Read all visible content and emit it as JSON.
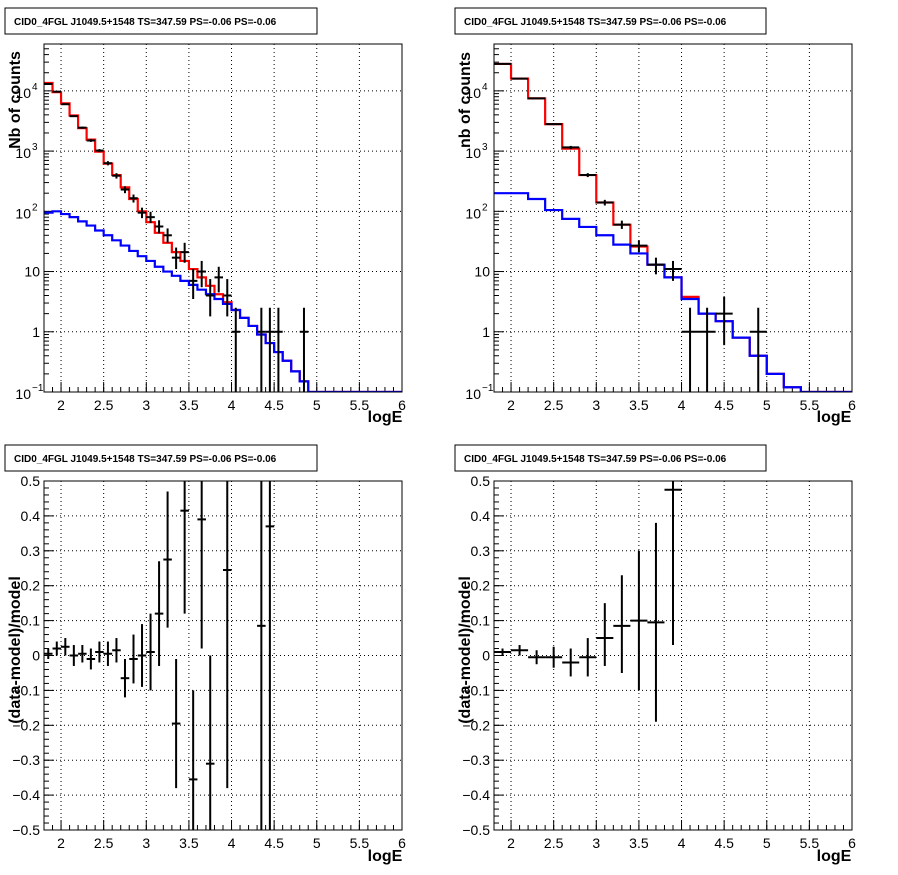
{
  "chart_data": [
    {
      "panel": "top-left",
      "type": "histogram",
      "title": "CID0_4FGL J1049.5+1548 TS=347.59 PS=-0.06 PS=-0.06",
      "xlabel": "logE",
      "ylabel": "Nb of counts",
      "xlim": [
        1.8,
        6.0
      ],
      "ylim": [
        0.1,
        60000
      ],
      "yscale": "log",
      "grid": true,
      "x_ticks": [
        "2",
        "2.5",
        "3",
        "3.5",
        "4",
        "4.5",
        "5",
        "5.5",
        "6"
      ],
      "y_ticks": [
        {
          "value": 0.1,
          "base": "10",
          "exp": "−1"
        },
        {
          "value": 1,
          "label": "1"
        },
        {
          "value": 10,
          "label": "10"
        },
        {
          "value": 100,
          "base": "10",
          "exp": "2"
        },
        {
          "value": 1000,
          "base": "10",
          "exp": "3"
        },
        {
          "value": 10000,
          "base": "10",
          "exp": "4"
        }
      ],
      "bin_edges": [
        1.8,
        1.9,
        2.0,
        2.1,
        2.2,
        2.3,
        2.4,
        2.5,
        2.6,
        2.7,
        2.8,
        2.9,
        3.0,
        3.1,
        3.2,
        3.3,
        3.4,
        3.5,
        3.6,
        3.7,
        3.8,
        3.9,
        4.0,
        4.1,
        4.2,
        4.3,
        4.4,
        4.5,
        4.6,
        4.7,
        4.8,
        4.9,
        5.0,
        5.1,
        5.2,
        5.3,
        5.4,
        5.5,
        5.6,
        5.7,
        5.8,
        5.9,
        6.0
      ],
      "series": [
        {
          "color": "#ff0000",
          "kind": "step",
          "values": [
            13500,
            9500,
            6200,
            3900,
            2400,
            1550,
            980,
            620,
            400,
            250,
            160,
            100,
            66,
            44,
            30,
            21,
            15,
            11,
            8,
            5.8,
            4.2,
            3.1,
            2.3,
            1.7,
            1.25,
            0.9,
            0.65,
            0.46,
            0.33,
            0.22,
            0.15,
            0.1,
            0.1,
            0.1,
            0.1,
            0.1,
            0.1,
            0.1,
            0.1,
            0.1,
            0.1,
            0.1
          ]
        },
        {
          "color": "#0000ff",
          "kind": "step",
          "values": [
            95,
            100,
            90,
            80,
            68,
            58,
            48,
            40,
            33,
            27,
            22,
            18,
            15,
            12,
            10,
            8.5,
            7,
            6,
            5,
            4.2,
            3.5,
            2.9,
            2.3,
            1.7,
            1.25,
            0.9,
            0.65,
            0.46,
            0.33,
            0.22,
            0.15,
            0.1,
            0.1,
            0.1,
            0.1,
            0.1,
            0.1,
            0.1,
            0.1,
            0.1,
            0.1,
            0.1
          ]
        }
      ],
      "points": [
        {
          "x": 1.85,
          "y": 13000,
          "lo": 12800,
          "hi": 13200
        },
        {
          "x": 1.95,
          "y": 9700,
          "lo": 9500,
          "hi": 9900
        },
        {
          "x": 2.05,
          "y": 6000,
          "lo": 5850,
          "hi": 6150
        },
        {
          "x": 2.15,
          "y": 3800,
          "lo": 3680,
          "hi": 3920
        },
        {
          "x": 2.25,
          "y": 2450,
          "lo": 2350,
          "hi": 2550
        },
        {
          "x": 2.35,
          "y": 1500,
          "lo": 1420,
          "hi": 1580
        },
        {
          "x": 2.45,
          "y": 1020,
          "lo": 960,
          "hi": 1080
        },
        {
          "x": 2.55,
          "y": 630,
          "lo": 580,
          "hi": 680
        },
        {
          "x": 2.65,
          "y": 390,
          "lo": 350,
          "hi": 430
        },
        {
          "x": 2.75,
          "y": 230,
          "lo": 200,
          "hi": 260
        },
        {
          "x": 2.85,
          "y": 165,
          "lo": 140,
          "hi": 190
        },
        {
          "x": 2.95,
          "y": 95,
          "lo": 77,
          "hi": 115
        },
        {
          "x": 3.05,
          "y": 80,
          "lo": 64,
          "hi": 98
        },
        {
          "x": 3.15,
          "y": 56,
          "lo": 43,
          "hi": 71
        },
        {
          "x": 3.25,
          "y": 40,
          "lo": 30,
          "hi": 52
        },
        {
          "x": 3.35,
          "y": 17,
          "lo": 11,
          "hi": 25
        },
        {
          "x": 3.45,
          "y": 21,
          "lo": 14,
          "hi": 30
        },
        {
          "x": 3.55,
          "y": 7,
          "lo": 3.5,
          "hi": 11
        },
        {
          "x": 3.65,
          "y": 10,
          "lo": 5.5,
          "hi": 15
        },
        {
          "x": 3.75,
          "y": 4,
          "lo": 1.8,
          "hi": 7.5
        },
        {
          "x": 3.85,
          "y": 8,
          "lo": 4.5,
          "hi": 12
        },
        {
          "x": 3.95,
          "y": 4,
          "lo": 1.8,
          "hi": 7.5
        },
        {
          "x": 4.05,
          "y": 1,
          "lo": 0.1,
          "hi": 2.5
        },
        {
          "x": 4.35,
          "y": 1,
          "lo": 0.1,
          "hi": 2.5
        },
        {
          "x": 4.45,
          "y": 1,
          "lo": 0.1,
          "hi": 2.5
        },
        {
          "x": 4.55,
          "y": 1,
          "lo": 0.1,
          "hi": 2.5
        },
        {
          "x": 4.85,
          "y": 1,
          "lo": 0.1,
          "hi": 2.5
        }
      ]
    },
    {
      "panel": "top-right",
      "type": "histogram",
      "title": "CID0_4FGL J1049.5+1548 TS=347.59 PS=-0.06 PS=-0.06",
      "xlabel": "logE",
      "ylabel": "nb of counts",
      "xlim": [
        1.8,
        6.0
      ],
      "ylim": [
        0.1,
        60000
      ],
      "yscale": "log",
      "grid": true,
      "x_ticks": [
        "2",
        "2.5",
        "3",
        "3.5",
        "4",
        "4.5",
        "5",
        "5.5",
        "6"
      ],
      "y_ticks": [
        {
          "value": 0.1,
          "base": "10",
          "exp": "−1"
        },
        {
          "value": 1,
          "label": "1"
        },
        {
          "value": 10,
          "label": "10"
        },
        {
          "value": 100,
          "base": "10",
          "exp": "2"
        },
        {
          "value": 1000,
          "base": "10",
          "exp": "3"
        },
        {
          "value": 10000,
          "base": "10",
          "exp": "4"
        }
      ],
      "bin_edges": [
        1.8,
        2.0,
        2.2,
        2.4,
        2.6,
        2.8,
        3.0,
        3.2,
        3.4,
        3.6,
        3.8,
        4.0,
        4.2,
        4.4,
        4.6,
        4.8,
        5.0,
        5.2,
        5.4,
        5.6,
        5.8,
        6.0
      ],
      "series": [
        {
          "color": "#ff0000",
          "kind": "step",
          "values": [
            28000,
            16000,
            7500,
            2800,
            1100,
            400,
            140,
            60,
            26,
            13,
            8,
            3.8,
            2,
            1.5,
            0.8,
            0.4,
            0.2,
            0.12,
            0.1,
            0.1,
            0.1
          ]
        },
        {
          "color": "#0000ff",
          "kind": "step",
          "values": [
            200,
            200,
            160,
            105,
            75,
            55,
            40,
            28,
            20,
            13,
            8,
            3.5,
            2,
            1.5,
            0.8,
            0.4,
            0.2,
            0.12,
            0.1,
            0.1,
            0.1
          ]
        }
      ],
      "points": [
        {
          "x": 1.9,
          "y": 28000,
          "lo": 27700,
          "hi": 28300
        },
        {
          "x": 2.1,
          "y": 16000,
          "lo": 15800,
          "hi": 16200
        },
        {
          "x": 2.3,
          "y": 7500,
          "lo": 7350,
          "hi": 7650
        },
        {
          "x": 2.5,
          "y": 2800,
          "lo": 2700,
          "hi": 2900
        },
        {
          "x": 2.7,
          "y": 1150,
          "lo": 1080,
          "hi": 1220
        },
        {
          "x": 2.9,
          "y": 400,
          "lo": 370,
          "hi": 430
        },
        {
          "x": 3.1,
          "y": 140,
          "lo": 125,
          "hi": 155
        },
        {
          "x": 3.3,
          "y": 60,
          "lo": 51,
          "hi": 70
        },
        {
          "x": 3.5,
          "y": 27,
          "lo": 21,
          "hi": 33
        },
        {
          "x": 3.7,
          "y": 13,
          "lo": 9,
          "hi": 17
        },
        {
          "x": 3.9,
          "y": 11,
          "lo": 7,
          "hi": 15
        },
        {
          "x": 4.1,
          "y": 1,
          "lo": 0.1,
          "hi": 2.5
        },
        {
          "x": 4.3,
          "y": 1,
          "lo": 0.1,
          "hi": 2.5
        },
        {
          "x": 4.5,
          "y": 2,
          "lo": 0.6,
          "hi": 3.8
        },
        {
          "x": 4.9,
          "y": 1,
          "lo": 0.1,
          "hi": 2.5
        }
      ]
    },
    {
      "panel": "bottom-left",
      "type": "scatter",
      "title": "CID0_4FGL J1049.5+1548 TS=347.59 PS=-0.06 PS=-0.06",
      "xlabel": "logE",
      "ylabel": "(data-model)/model",
      "xlim": [
        1.8,
        6.0
      ],
      "ylim": [
        -0.5,
        0.5
      ],
      "grid": true,
      "x_ticks": [
        "2",
        "2.5",
        "3",
        "3.5",
        "4",
        "4.5",
        "5",
        "5.5",
        "6"
      ],
      "y_ticks": [
        "−0.5",
        "−0.4",
        "−0.3",
        "−0.2",
        "−0.1",
        "0",
        "0.1",
        "0.2",
        "0.3",
        "0.4",
        "0.5"
      ],
      "bin_halfwidth": 0.05,
      "points": [
        {
          "x": 1.85,
          "y": 0.005,
          "lo": -0.01,
          "hi": 0.02
        },
        {
          "x": 1.95,
          "y": 0.02,
          "lo": 0.0,
          "hi": 0.04
        },
        {
          "x": 2.05,
          "y": 0.025,
          "lo": 0.0,
          "hi": 0.05
        },
        {
          "x": 2.15,
          "y": 0.0,
          "lo": -0.03,
          "hi": 0.03
        },
        {
          "x": 2.25,
          "y": 0.005,
          "lo": -0.02,
          "hi": 0.03
        },
        {
          "x": 2.35,
          "y": -0.01,
          "lo": -0.04,
          "hi": 0.02
        },
        {
          "x": 2.45,
          "y": 0.01,
          "lo": -0.02,
          "hi": 0.04
        },
        {
          "x": 2.55,
          "y": 0.005,
          "lo": -0.03,
          "hi": 0.04
        },
        {
          "x": 2.65,
          "y": 0.015,
          "lo": -0.02,
          "hi": 0.05
        },
        {
          "x": 2.75,
          "y": -0.065,
          "lo": -0.12,
          "hi": -0.01
        },
        {
          "x": 2.85,
          "y": -0.01,
          "lo": -0.08,
          "hi": 0.06
        },
        {
          "x": 2.95,
          "y": 0.0,
          "lo": -0.09,
          "hi": 0.09
        },
        {
          "x": 3.05,
          "y": 0.01,
          "lo": -0.1,
          "hi": 0.12
        },
        {
          "x": 3.15,
          "y": 0.12,
          "lo": -0.03,
          "hi": 0.27
        },
        {
          "x": 3.25,
          "y": 0.275,
          "lo": 0.08,
          "hi": 0.47
        },
        {
          "x": 3.35,
          "y": -0.195,
          "lo": -0.38,
          "hi": -0.01
        },
        {
          "x": 3.45,
          "y": 0.415,
          "lo": 0.12,
          "hi": 0.5
        },
        {
          "x": 3.55,
          "y": -0.355,
          "lo": -0.5,
          "hi": -0.1
        },
        {
          "x": 3.65,
          "y": 0.39,
          "lo": 0.02,
          "hi": 0.5
        },
        {
          "x": 3.75,
          "y": -0.31,
          "lo": -0.5,
          "hi": 0.0
        },
        {
          "x": 3.95,
          "y": 0.245,
          "lo": -0.38,
          "hi": 0.5
        },
        {
          "x": 4.35,
          "y": 0.085,
          "lo": -0.5,
          "hi": 0.5
        },
        {
          "x": 4.45,
          "y": 0.37,
          "lo": -0.5,
          "hi": 0.5
        }
      ]
    },
    {
      "panel": "bottom-right",
      "type": "scatter",
      "title": "CID0_4FGL J1049.5+1548 TS=347.59 PS=-0.06 PS=-0.06",
      "xlabel": "logE",
      "ylabel": "(data-model)/model",
      "xlim": [
        1.8,
        6.0
      ],
      "ylim": [
        -0.5,
        0.5
      ],
      "grid": true,
      "x_ticks": [
        "2",
        "2.5",
        "3",
        "3.5",
        "4",
        "4.5",
        "5",
        "5.5",
        "6"
      ],
      "y_ticks": [
        "−0.5",
        "−0.4",
        "−0.3",
        "−0.2",
        "−0.1",
        "0",
        "0.1",
        "0.2",
        "0.3",
        "0.4",
        "0.5"
      ],
      "bin_halfwidth": 0.1,
      "points": [
        {
          "x": 1.9,
          "y": 0.01,
          "lo": 0.0,
          "hi": 0.02
        },
        {
          "x": 2.1,
          "y": 0.015,
          "lo": 0.0,
          "hi": 0.03
        },
        {
          "x": 2.3,
          "y": -0.005,
          "lo": -0.025,
          "hi": 0.015
        },
        {
          "x": 2.5,
          "y": -0.005,
          "lo": -0.035,
          "hi": 0.025
        },
        {
          "x": 2.7,
          "y": -0.02,
          "lo": -0.06,
          "hi": 0.02
        },
        {
          "x": 2.9,
          "y": -0.005,
          "lo": -0.06,
          "hi": 0.05
        },
        {
          "x": 3.1,
          "y": 0.05,
          "lo": -0.03,
          "hi": 0.15
        },
        {
          "x": 3.3,
          "y": 0.085,
          "lo": -0.05,
          "hi": 0.23
        },
        {
          "x": 3.5,
          "y": 0.1,
          "lo": -0.1,
          "hi": 0.3
        },
        {
          "x": 3.7,
          "y": 0.095,
          "lo": -0.19,
          "hi": 0.38
        },
        {
          "x": 3.9,
          "y": 0.475,
          "lo": 0.03,
          "hi": 0.5
        }
      ]
    }
  ]
}
